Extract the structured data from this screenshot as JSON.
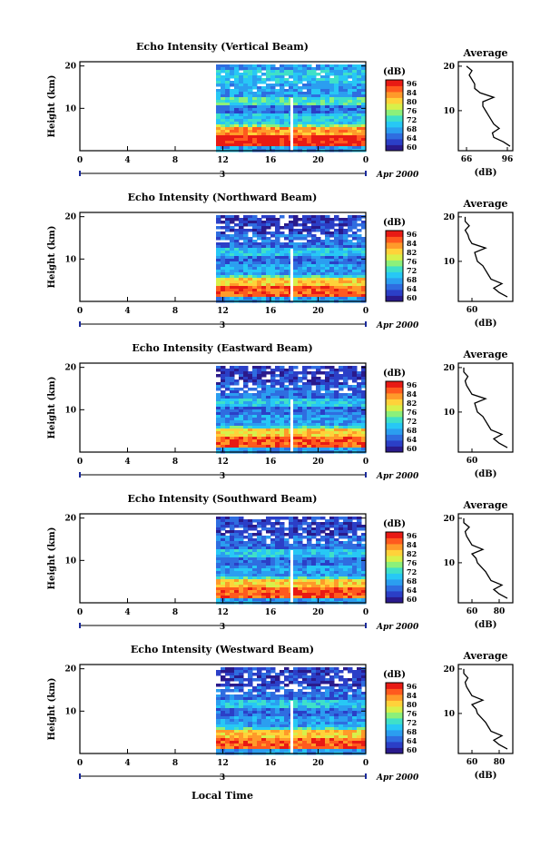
{
  "colormap": [
    "#2a1a8c",
    "#2b3fc7",
    "#2f6de0",
    "#2b9ef0",
    "#27c8f5",
    "#3fe0c8",
    "#8cf07a",
    "#d8f04a",
    "#ffd23a",
    "#ff9a2a",
    "#ff5a1e",
    "#e81a14"
  ],
  "chart_data": [
    {
      "type": "heatmap",
      "title": "Echo Intensity (Vertical Beam)",
      "ylabel": "Height (km)",
      "yticks": [
        "20",
        "10"
      ],
      "xticks": [
        "0",
        "4",
        "8",
        "12",
        "16",
        "20",
        "0"
      ],
      "date_day": "3",
      "date_label": "Apr 2000",
      "colorbar_unit": "(dB)",
      "colorbar_ticks": [
        "96",
        "84",
        "80",
        "76",
        "72",
        "68",
        "64",
        "60"
      ],
      "average_title": "Average",
      "average_xlabel": "(dB)",
      "average_xticks": [
        "66",
        "96"
      ],
      "average_yticks": [
        "20",
        "10"
      ],
      "average_xlim": [
        60,
        100
      ],
      "average_ylim": [
        2,
        20
      ],
      "average_profile": [
        [
          2,
          98
        ],
        [
          3,
          93
        ],
        [
          4,
          86
        ],
        [
          5,
          85
        ],
        [
          6,
          90
        ],
        [
          7,
          86
        ],
        [
          8,
          84
        ],
        [
          9,
          82
        ],
        [
          10,
          80
        ],
        [
          11,
          78
        ],
        [
          12,
          78
        ],
        [
          13,
          86
        ],
        [
          14,
          76
        ],
        [
          15,
          72
        ],
        [
          16,
          72
        ],
        [
          17,
          70
        ],
        [
          18,
          68
        ],
        [
          19,
          70
        ],
        [
          20,
          66
        ]
      ],
      "bands": [
        [
          2,
          4,
          11
        ],
        [
          4,
          6,
          9
        ],
        [
          6,
          7,
          6
        ],
        [
          7,
          9,
          4
        ],
        [
          9,
          11,
          2
        ],
        [
          11,
          13,
          5
        ],
        [
          13,
          16,
          3
        ],
        [
          16,
          19,
          4
        ],
        [
          19,
          20,
          3
        ]
      ]
    },
    {
      "type": "heatmap",
      "title": "Echo Intensity (Northward Beam)",
      "ylabel": "Height (km)",
      "yticks": [
        "20",
        "10"
      ],
      "xticks": [
        "0",
        "4",
        "8",
        "12",
        "16",
        "20",
        "0"
      ],
      "date_day": "3",
      "date_label": "Apr 2000",
      "colorbar_unit": "(dB)",
      "colorbar_ticks": [
        "96",
        "84",
        "82",
        "76",
        "72",
        "68",
        "64",
        "60"
      ],
      "average_title": "Average",
      "average_xlabel": "(dB)",
      "average_xticks": [
        "60"
      ],
      "average_yticks": [
        "20",
        "10"
      ],
      "average_xlim": [
        50,
        90
      ],
      "average_ylim": [
        2,
        20
      ],
      "average_profile": [
        [
          2,
          86
        ],
        [
          3,
          80
        ],
        [
          4,
          76
        ],
        [
          5,
          82
        ],
        [
          6,
          74
        ],
        [
          7,
          72
        ],
        [
          8,
          70
        ],
        [
          9,
          68
        ],
        [
          10,
          64
        ],
        [
          11,
          63
        ],
        [
          12,
          62
        ],
        [
          13,
          70
        ],
        [
          14,
          60
        ],
        [
          15,
          58
        ],
        [
          16,
          57
        ],
        [
          17,
          55
        ],
        [
          18,
          58
        ],
        [
          19,
          55
        ],
        [
          20,
          55
        ]
      ],
      "bands": [
        [
          2,
          4,
          10
        ],
        [
          4,
          6,
          8
        ],
        [
          6,
          7,
          5
        ],
        [
          7,
          9,
          3
        ],
        [
          9,
          11,
          2
        ],
        [
          11,
          13,
          4
        ],
        [
          13,
          16,
          2
        ],
        [
          16,
          19,
          1
        ],
        [
          19,
          20,
          1
        ]
      ]
    },
    {
      "type": "heatmap",
      "title": "Echo Intensity (Eastward Beam)",
      "ylabel": "Height (km)",
      "yticks": [
        "20",
        "10"
      ],
      "xticks": [
        "0",
        "4",
        "8",
        "12",
        "16",
        "20",
        "0"
      ],
      "date_day": "3",
      "date_label": "Apr 2000",
      "colorbar_unit": "(dB)",
      "colorbar_ticks": [
        "96",
        "84",
        "82",
        "76",
        "72",
        "68",
        "64",
        "60"
      ],
      "average_title": "Average",
      "average_xlabel": "(dB)",
      "average_xticks": [
        "60"
      ],
      "average_yticks": [
        "20",
        "10"
      ],
      "average_xlim": [
        50,
        90
      ],
      "average_ylim": [
        2,
        20
      ],
      "average_profile": [
        [
          2,
          86
        ],
        [
          3,
          80
        ],
        [
          4,
          76
        ],
        [
          5,
          82
        ],
        [
          6,
          74
        ],
        [
          7,
          72
        ],
        [
          8,
          70
        ],
        [
          9,
          68
        ],
        [
          10,
          64
        ],
        [
          11,
          63
        ],
        [
          12,
          62
        ],
        [
          13,
          70
        ],
        [
          14,
          60
        ],
        [
          15,
          58
        ],
        [
          16,
          56
        ],
        [
          17,
          55
        ],
        [
          18,
          57
        ],
        [
          19,
          54
        ],
        [
          20,
          54
        ]
      ],
      "bands": [
        [
          2,
          4,
          10
        ],
        [
          4,
          6,
          8
        ],
        [
          6,
          7,
          5
        ],
        [
          7,
          9,
          3
        ],
        [
          9,
          11,
          2
        ],
        [
          11,
          13,
          4
        ],
        [
          13,
          16,
          2
        ],
        [
          16,
          19,
          1
        ],
        [
          19,
          20,
          1
        ]
      ]
    },
    {
      "type": "heatmap",
      "title": "Echo Intensity (Southward Beam)",
      "ylabel": "Height (km)",
      "yticks": [
        "20",
        "10"
      ],
      "xticks": [
        "0",
        "4",
        "8",
        "12",
        "16",
        "20",
        "0"
      ],
      "date_day": "3",
      "date_label": "Apr 2000",
      "colorbar_unit": "(dB)",
      "colorbar_ticks": [
        "96",
        "84",
        "82",
        "76",
        "72",
        "68",
        "64",
        "60"
      ],
      "average_title": "Average",
      "average_xlabel": "(dB)",
      "average_xticks": [
        "60",
        "80"
      ],
      "average_yticks": [
        "20",
        "10"
      ],
      "average_xlim": [
        50,
        90
      ],
      "average_ylim": [
        2,
        20
      ],
      "average_profile": [
        [
          2,
          86
        ],
        [
          3,
          80
        ],
        [
          4,
          76
        ],
        [
          5,
          82
        ],
        [
          6,
          74
        ],
        [
          7,
          72
        ],
        [
          8,
          70
        ],
        [
          9,
          67
        ],
        [
          10,
          64
        ],
        [
          11,
          63
        ],
        [
          12,
          60
        ],
        [
          13,
          68
        ],
        [
          14,
          60
        ],
        [
          15,
          58
        ],
        [
          16,
          56
        ],
        [
          17,
          55
        ],
        [
          18,
          58
        ],
        [
          19,
          54
        ],
        [
          20,
          54
        ]
      ],
      "bands": [
        [
          2,
          4,
          10
        ],
        [
          4,
          6,
          8
        ],
        [
          6,
          7,
          5
        ],
        [
          7,
          9,
          3
        ],
        [
          9,
          11,
          2
        ],
        [
          11,
          13,
          4
        ],
        [
          13,
          16,
          2
        ],
        [
          16,
          19,
          1
        ],
        [
          19,
          20,
          1
        ]
      ]
    },
    {
      "type": "heatmap",
      "title": "Echo Intensity (Westward Beam)",
      "ylabel": "Height (km)",
      "yticks": [
        "20",
        "10"
      ],
      "xticks": [
        "0",
        "4",
        "8",
        "12",
        "16",
        "20",
        "0"
      ],
      "date_day": "3",
      "date_label": "Apr 2000",
      "colorbar_unit": "(dB)",
      "colorbar_ticks": [
        "96",
        "84",
        "80",
        "76",
        "72",
        "68",
        "64",
        "60"
      ],
      "average_title": "Average",
      "average_xlabel": "(dB)",
      "average_xticks": [
        "60",
        "80"
      ],
      "average_yticks": [
        "20",
        "10"
      ],
      "average_xlim": [
        50,
        90
      ],
      "average_ylim": [
        2,
        20
      ],
      "average_profile": [
        [
          2,
          86
        ],
        [
          3,
          80
        ],
        [
          4,
          76
        ],
        [
          5,
          82
        ],
        [
          6,
          74
        ],
        [
          7,
          72
        ],
        [
          8,
          70
        ],
        [
          9,
          67
        ],
        [
          10,
          64
        ],
        [
          11,
          63
        ],
        [
          12,
          60
        ],
        [
          13,
          68
        ],
        [
          14,
          60
        ],
        [
          15,
          58
        ],
        [
          16,
          56
        ],
        [
          17,
          55
        ],
        [
          18,
          57
        ],
        [
          19,
          54
        ],
        [
          20,
          54
        ]
      ],
      "bands": [
        [
          2,
          4,
          10
        ],
        [
          4,
          6,
          8
        ],
        [
          6,
          7,
          5
        ],
        [
          7,
          9,
          3
        ],
        [
          9,
          11,
          2
        ],
        [
          11,
          13,
          4
        ],
        [
          13,
          16,
          2
        ],
        [
          16,
          19,
          1
        ],
        [
          19,
          20,
          1
        ]
      ]
    }
  ],
  "xlabel": "Local Time"
}
